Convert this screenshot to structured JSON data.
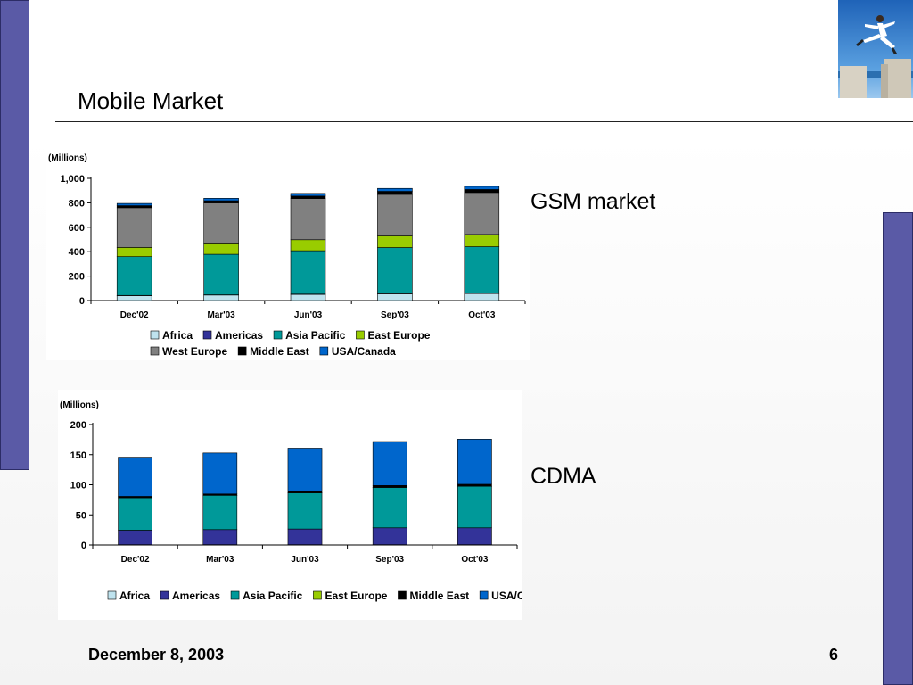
{
  "slide": {
    "title": "Mobile Market",
    "gsm_label": "GSM market",
    "cdma_label": "CDMA",
    "footer_date": "December 8, 2003",
    "page_number": "6"
  },
  "colors": {
    "Africa": "#bfe3ee",
    "Americas": "#333399",
    "Asia Pacific": "#009999",
    "East Europe": "#99cc00",
    "West Europe": "#808080",
    "Middle East": "#000000",
    "USA/Canada": "#0066cc",
    "accent_bar": "#5a5aa6"
  },
  "chart_data": [
    {
      "type": "bar",
      "stacked": true,
      "title": "",
      "ylabel": "(Millions)",
      "ylim": [
        0,
        1000
      ],
      "yticks": [
        0,
        200,
        400,
        600,
        800,
        1000
      ],
      "ytick_labels": [
        "0",
        "200",
        "400",
        "600",
        "800",
        "1,000"
      ],
      "categories": [
        "Dec'02",
        "Mar'03",
        "Jun'03",
        "Sep'03",
        "Oct'03"
      ],
      "legend_position": "bottom",
      "series": [
        {
          "name": "Africa",
          "values": [
            40,
            45,
            50,
            55,
            57
          ]
        },
        {
          "name": "Americas",
          "values": [
            2,
            2,
            3,
            4,
            4
          ]
        },
        {
          "name": "Asia Pacific",
          "values": [
            318,
            332,
            355,
            375,
            380
          ]
        },
        {
          "name": "East Europe",
          "values": [
            75,
            85,
            90,
            95,
            100
          ]
        },
        {
          "name": "West Europe",
          "values": [
            325,
            335,
            337,
            340,
            343
          ]
        },
        {
          "name": "Middle East",
          "values": [
            17,
            18,
            20,
            25,
            25
          ]
        },
        {
          "name": "USA/Canada",
          "values": [
            18,
            20,
            22,
            24,
            26
          ]
        }
      ]
    },
    {
      "type": "bar",
      "stacked": true,
      "title": "",
      "ylabel": "(Millions)",
      "ylim": [
        0,
        200
      ],
      "yticks": [
        0,
        50,
        100,
        150,
        200
      ],
      "ytick_labels": [
        "0",
        "50",
        "100",
        "150",
        "200"
      ],
      "categories": [
        "Dec'02",
        "Mar'03",
        "Jun'03",
        "Sep'03",
        "Oct'03"
      ],
      "legend_position": "bottom",
      "legend_entries": [
        "Africa",
        "Americas",
        "Asia Pacific",
        "East Europe",
        "Middle East",
        "USA/Canada"
      ],
      "series": [
        {
          "name": "Africa",
          "values": [
            0.5,
            0.5,
            0.5,
            0.5,
            0.5
          ]
        },
        {
          "name": "Americas",
          "values": [
            24,
            25,
            26,
            28,
            28
          ]
        },
        {
          "name": "Asia Pacific",
          "values": [
            54,
            57,
            60,
            67,
            69
          ]
        },
        {
          "name": "East Europe",
          "values": [
            0.3,
            0.3,
            0.3,
            0.3,
            0.3
          ]
        },
        {
          "name": "Middle East",
          "values": [
            2,
            2,
            3,
            3,
            3
          ]
        },
        {
          "name": "USA/Canada",
          "values": [
            65,
            68,
            71,
            73,
            75
          ]
        }
      ]
    }
  ]
}
